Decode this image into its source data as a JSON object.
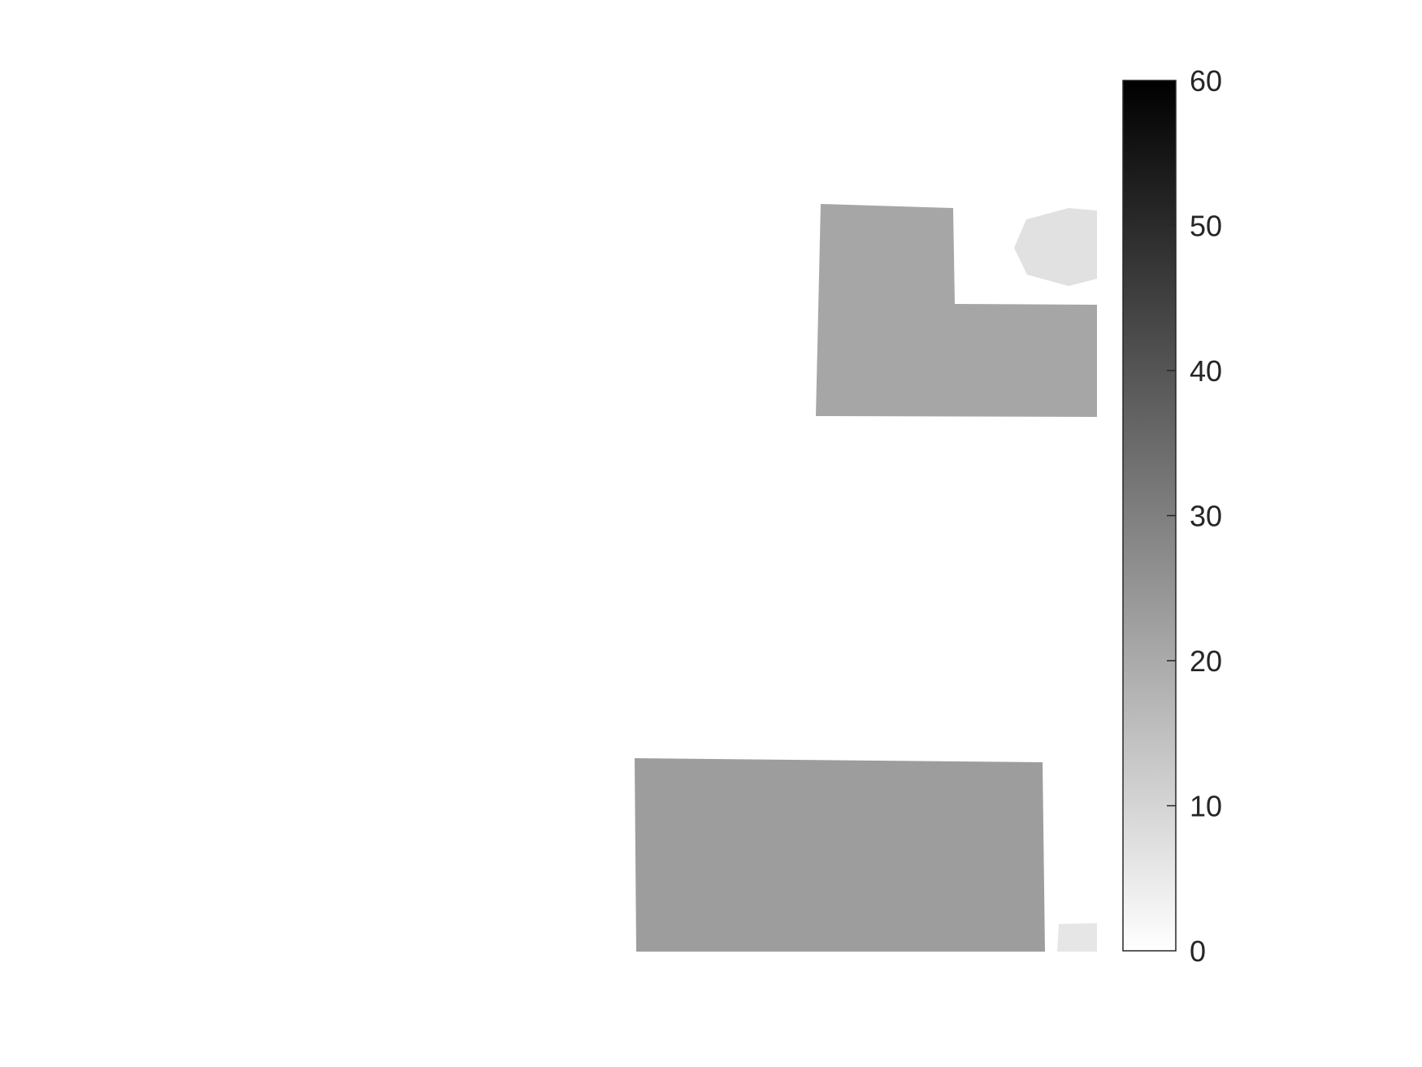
{
  "chart_data": {
    "type": "heatmap",
    "title": "",
    "xlabel": "",
    "ylabel": "",
    "axes_visible": false,
    "grid": false,
    "colormap": "gray (reversed: 0 = white, 60 = black)",
    "colorbar": {
      "location": "right",
      "clim": [
        0,
        60
      ],
      "ticks": [
        0,
        10,
        20,
        30,
        40,
        50,
        60
      ],
      "tick_labels": [
        "0",
        "10",
        "20",
        "30",
        "40",
        "50",
        "60"
      ]
    },
    "regions": [
      {
        "name": "upper-l-shaped-region",
        "value": 21
      },
      {
        "name": "upper-right-hexagon-region",
        "value": 7
      },
      {
        "name": "lower-rectangle-region",
        "value": 23
      },
      {
        "name": "lower-right-small-region",
        "value": 6
      }
    ]
  }
}
